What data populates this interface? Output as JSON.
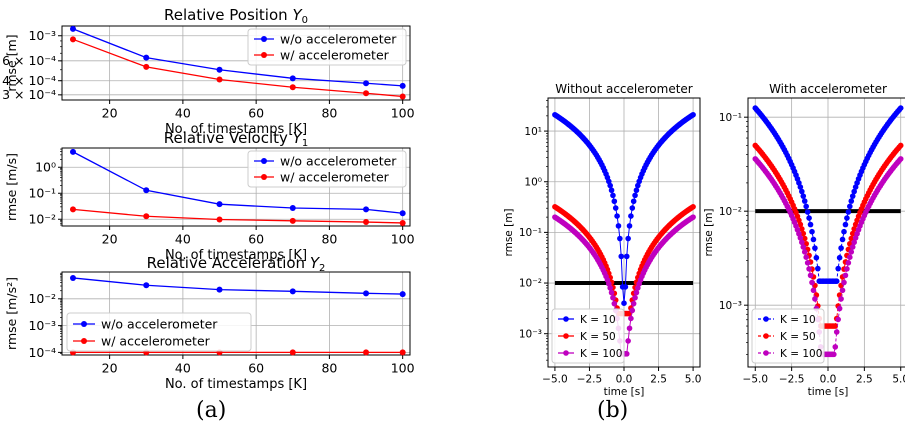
{
  "captions": {
    "a": "(a)",
    "b": "(b)"
  },
  "colors": {
    "blue": "#0000ff",
    "red": "#ff0000",
    "magenta": "#bf00bf",
    "black": "#000000",
    "grid": "#b0b0b0"
  },
  "chart_data": [
    {
      "type": "line",
      "title": "Relative Position Y_0",
      "title_main": "Relative Position ",
      "title_var": "Y",
      "title_sub": "0",
      "xlabel": "No. of timestamps [K]",
      "ylabel": "rmse [m]",
      "yscale": "log",
      "xlim": [
        7,
        102
      ],
      "ylim": [
        0.00027,
        0.00122
      ],
      "xticks": [
        20,
        40,
        60,
        80,
        100
      ],
      "yticks": [
        {
          "v": 0.001,
          "label": "10⁻³"
        },
        {
          "v": 0.0006,
          "label": "6 × 10⁻⁴"
        },
        {
          "v": 0.0004,
          "label": "4 × 10⁻⁴"
        },
        {
          "v": 0.0003,
          "label": "3 × 10⁻⁴"
        }
      ],
      "grid": true,
      "legend": "top-right",
      "x": [
        10,
        30,
        50,
        70,
        90,
        100
      ],
      "series": [
        {
          "name": "w/o accelerometer",
          "color": "#0000ff",
          "values": [
            0.00115,
            0.00064,
            0.0005,
            0.00042,
            0.00038,
            0.00036
          ]
        },
        {
          "name": "w/ accelerometer",
          "color": "#ff0000",
          "values": [
            0.00093,
            0.00053,
            0.00041,
            0.00035,
            0.00031,
            0.00029
          ]
        }
      ]
    },
    {
      "type": "line",
      "title": "Relative Velocity Y_1",
      "title_main": "Relative Velocity ",
      "title_var": "Y",
      "title_sub": "1",
      "xlabel": "No. of timestamps [K]",
      "ylabel": "rmse [m/s]",
      "yscale": "log",
      "xlim": [
        7,
        102
      ],
      "ylim": [
        0.0055,
        5.5
      ],
      "xticks": [
        20,
        40,
        60,
        80,
        100
      ],
      "yticks": [
        {
          "v": 1,
          "label": "10⁰"
        },
        {
          "v": 0.1,
          "label": "10⁻¹"
        },
        {
          "v": 0.01,
          "label": "10⁻²"
        }
      ],
      "grid": true,
      "legend": "top-right",
      "x": [
        10,
        30,
        50,
        70,
        90,
        100
      ],
      "series": [
        {
          "name": "w/o accelerometer",
          "color": "#0000ff",
          "values": [
            3.9,
            0.13,
            0.038,
            0.027,
            0.024,
            0.017
          ]
        },
        {
          "name": "w/ accelerometer",
          "color": "#ff0000",
          "values": [
            0.024,
            0.013,
            0.0098,
            0.0087,
            0.0078,
            0.0072
          ]
        }
      ]
    },
    {
      "type": "line",
      "title": "Relative Acceleration Y_2",
      "title_main": "Relative Acceleration ",
      "title_var": "Y",
      "title_sub": "2",
      "xlabel": "No. of timestamps [K]",
      "ylabel": "rmse [m/s²]",
      "yscale": "log",
      "xlim": [
        7,
        102
      ],
      "ylim": [
        8e-05,
        0.1
      ],
      "xticks": [
        20,
        40,
        60,
        80,
        100
      ],
      "yticks": [
        {
          "v": 0.01,
          "label": "10⁻²"
        },
        {
          "v": 0.001,
          "label": "10⁻³"
        },
        {
          "v": 0.0001,
          "label": "10⁻⁴"
        }
      ],
      "grid": true,
      "legend": "bottom-left",
      "x": [
        10,
        30,
        50,
        70,
        90,
        100
      ],
      "series": [
        {
          "name": "w/o accelerometer",
          "color": "#0000ff",
          "values": [
            0.06,
            0.032,
            0.022,
            0.019,
            0.016,
            0.015
          ]
        },
        {
          "name": "w/ accelerometer",
          "color": "#ff0000",
          "values": [
            0.0001,
            0.0001,
            0.0001,
            0.0001,
            0.0001,
            0.0001
          ]
        }
      ]
    },
    {
      "type": "scatter",
      "title": "Without accelerometer",
      "xlabel": "time [s]",
      "ylabel": "rmse [m]",
      "yscale": "log",
      "xlim": [
        -5.5,
        5.5
      ],
      "ylim": [
        0.00022,
        45
      ],
      "xticks": [
        {
          "v": -5,
          "label": "−5.0"
        },
        {
          "v": -2.5,
          "label": "−2.5"
        },
        {
          "v": 0,
          "label": "0.0"
        },
        {
          "v": 2.5,
          "label": "2.5"
        },
        {
          "v": 5,
          "label": "5.0"
        }
      ],
      "yticks": [
        {
          "v": 10,
          "label": "10¹"
        },
        {
          "v": 1,
          "label": "10⁰"
        },
        {
          "v": 0.1,
          "label": "10⁻¹"
        },
        {
          "v": 0.01,
          "label": "10⁻²"
        },
        {
          "v": 0.001,
          "label": "10⁻³"
        }
      ],
      "grid": true,
      "legend": "bottom-left",
      "threshold": 0.01,
      "linestyle": "solid",
      "series": [
        {
          "name": "K = 10",
          "color": "#0000ff",
          "amplitude": 21,
          "floor": 0.004
        },
        {
          "name": "K = 50",
          "color": "#ff0000",
          "amplitude": 0.32,
          "floor": 0.0025
        },
        {
          "name": "K = 100",
          "color": "#bf00bf",
          "amplitude": 0.2,
          "floor": 0.0004
        }
      ]
    },
    {
      "type": "scatter",
      "title": "With accelerometer",
      "xlabel": "time [s]",
      "ylabel": "rmse [m]",
      "yscale": "log",
      "xlim": [
        -5.5,
        5.5
      ],
      "ylim": [
        0.00022,
        0.16
      ],
      "xticks": [
        {
          "v": -5,
          "label": "−5.0"
        },
        {
          "v": -2.5,
          "label": "−2.5"
        },
        {
          "v": 0,
          "label": "0.0"
        },
        {
          "v": 2.5,
          "label": "2.5"
        },
        {
          "v": 5,
          "label": "5.0"
        }
      ],
      "yticks": [
        {
          "v": 0.1,
          "label": "10⁻¹"
        },
        {
          "v": 0.01,
          "label": "10⁻²"
        },
        {
          "v": 0.001,
          "label": "10⁻³"
        }
      ],
      "grid": true,
      "legend": "bottom-left",
      "threshold": 0.01,
      "linestyle": "dashed",
      "series": [
        {
          "name": "K = 10",
          "color": "#0000ff",
          "amplitude": 0.125,
          "floor": 0.0018
        },
        {
          "name": "K = 50",
          "color": "#ff0000",
          "amplitude": 0.05,
          "floor": 0.0006
        },
        {
          "name": "K = 100",
          "color": "#bf00bf",
          "amplitude": 0.036,
          "floor": 0.0003
        }
      ]
    }
  ]
}
